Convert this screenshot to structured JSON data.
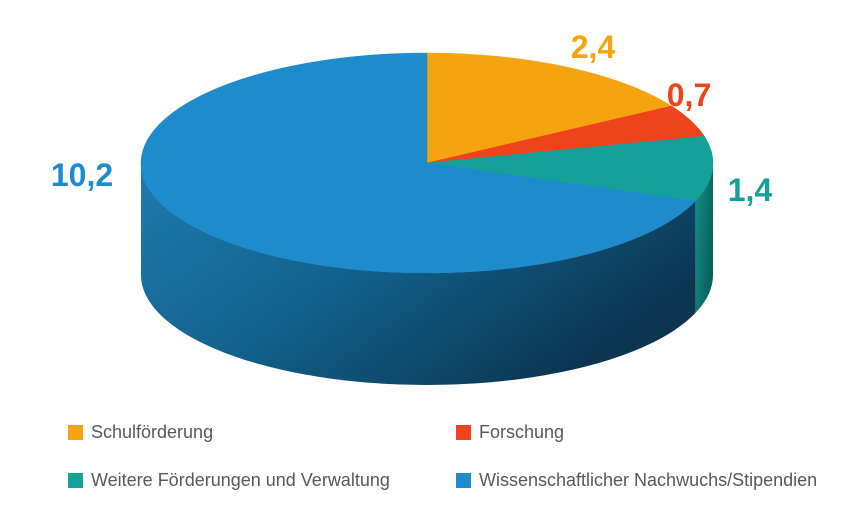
{
  "chart_data": {
    "type": "pie",
    "style": "3d",
    "title": "",
    "direction": "clockwise",
    "start_angle_deg": 0,
    "total": 14.7,
    "legend_position": "bottom",
    "background_color": "#FFFFFF",
    "legend_text_color": "#58585A",
    "slices": [
      {
        "label": "Schulförderung",
        "value": 2.4,
        "value_label": "2,4",
        "color": "#F5A40F"
      },
      {
        "label": "Forschung",
        "value": 0.7,
        "value_label": "0,7",
        "color": "#EE431B"
      },
      {
        "label": "Weitere Förderungen und Verwaltung",
        "value": 1.4,
        "value_label": "1,4",
        "color": "#16A09A",
        "side_gradient": [
          "#12938B",
          "#0A5F5B"
        ]
      },
      {
        "label": "Wissenschaftlicher Nachwuchs/Stipendien",
        "value": 10.2,
        "value_label": "10,2",
        "color": "#1E8BCD",
        "side_gradient": [
          "#1F7BB0",
          "#12618C",
          "#0B3551"
        ]
      }
    ]
  }
}
